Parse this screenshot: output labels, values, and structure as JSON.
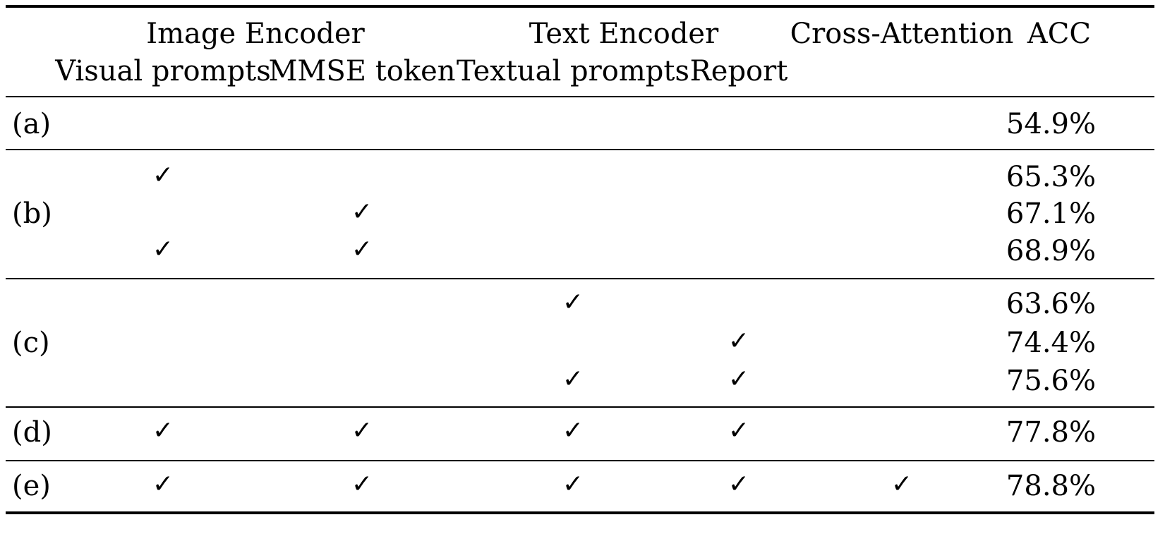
{
  "table": {
    "header": {
      "group_image": "Image Encoder",
      "group_text": "Text Encoder",
      "cross_attention": "Cross-Attention",
      "acc": "ACC",
      "sub_visual": "Visual prompts",
      "sub_mmse": "MMSE token",
      "sub_textual": "Textual prompts",
      "sub_report": "Report"
    },
    "check_glyph": "✓",
    "groups": [
      {
        "label": "(a)",
        "rows": [
          {
            "visual": false,
            "mmse": false,
            "textual": false,
            "report": false,
            "cross": false,
            "acc": "54.9%"
          }
        ]
      },
      {
        "label": "(b)",
        "rows": [
          {
            "visual": true,
            "mmse": false,
            "textual": false,
            "report": false,
            "cross": false,
            "acc": "65.3%"
          },
          {
            "visual": false,
            "mmse": true,
            "textual": false,
            "report": false,
            "cross": false,
            "acc": "67.1%"
          },
          {
            "visual": true,
            "mmse": true,
            "textual": false,
            "report": false,
            "cross": false,
            "acc": "68.9%"
          }
        ]
      },
      {
        "label": "(c)",
        "rows": [
          {
            "visual": false,
            "mmse": false,
            "textual": true,
            "report": false,
            "cross": false,
            "acc": "63.6%"
          },
          {
            "visual": false,
            "mmse": false,
            "textual": false,
            "report": true,
            "cross": false,
            "acc": "74.4%"
          },
          {
            "visual": false,
            "mmse": false,
            "textual": true,
            "report": true,
            "cross": false,
            "acc": "75.6%"
          }
        ]
      },
      {
        "label": "(d)",
        "rows": [
          {
            "visual": true,
            "mmse": true,
            "textual": true,
            "report": true,
            "cross": false,
            "acc": "77.8%"
          }
        ]
      },
      {
        "label": "(e)",
        "rows": [
          {
            "visual": true,
            "mmse": true,
            "textual": true,
            "report": true,
            "cross": true,
            "acc": "78.8%"
          }
        ]
      }
    ]
  }
}
